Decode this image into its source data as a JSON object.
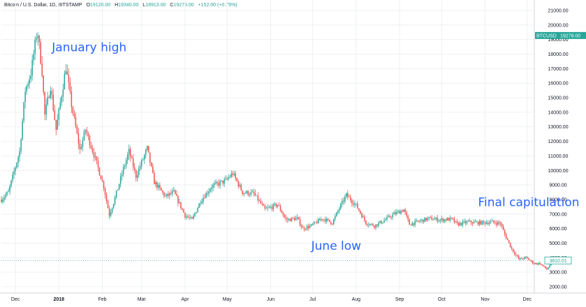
{
  "header": {
    "symbol": "Bitcoin / U.S. Dollar, 1D, BITSTAMP",
    "open_label": "O",
    "open": "19128.00",
    "high_label": "H",
    "high": "19340.00",
    "low_label": "L",
    "low": "18913.00",
    "close_label": "C",
    "close": "19278.00",
    "change": "+152.00 (+0.79%)"
  },
  "price_tag": {
    "ticker": "BTCUSD",
    "value": "19278.00",
    "color": "#26a69a"
  },
  "last_tag": {
    "value": "3810.01"
  },
  "annotations": [
    {
      "text": "January high",
      "date": "2017-12-27",
      "price": 18200
    },
    {
      "text": "June low",
      "date": "2018-06-30",
      "price": 4550
    },
    {
      "text": "Final capitulation",
      "date": "2018-10-27",
      "price": 7550
    }
  ],
  "chart_data": {
    "type": "candlestick",
    "title": "",
    "xlabel": "",
    "ylabel": "",
    "x_range": [
      "2017-11-21",
      "2018-12-31"
    ],
    "ylim": [
      1800,
      21100
    ],
    "y_ticks": [
      2000,
      3000,
      4000,
      5000,
      6000,
      7000,
      8000,
      9000,
      10000,
      11000,
      12000,
      13000,
      14000,
      15000,
      16000,
      17000,
      18000,
      19000,
      20000,
      21000
    ],
    "y_tick_labels": [
      "2000.00",
      "3000.00",
      "4000.00",
      "5000.00",
      "6000.00",
      "7000.00",
      "8000.00",
      "9000.00",
      "10000.00",
      "11000.00",
      "12000.00",
      "13000.00",
      "14000.00",
      "15000.00",
      "16000.00",
      "17000.00",
      "18000.00",
      "19000.00",
      "20000.00",
      "21000.00"
    ],
    "x_ticks": [
      {
        "date": "2017-12-01",
        "label": "Dec"
      },
      {
        "date": "2018-01-01",
        "label": "2018"
      },
      {
        "date": "2018-02-01",
        "label": "Feb"
      },
      {
        "date": "2018-03-01",
        "label": "Mar"
      },
      {
        "date": "2018-04-01",
        "label": "Apr"
      },
      {
        "date": "2018-05-01",
        "label": "May"
      },
      {
        "date": "2018-06-01",
        "label": "Jun"
      },
      {
        "date": "2018-07-01",
        "label": "Jul"
      },
      {
        "date": "2018-08-01",
        "label": "Aug"
      },
      {
        "date": "2018-09-01",
        "label": "Sep"
      },
      {
        "date": "2018-10-01",
        "label": "Oct"
      },
      {
        "date": "2018-11-01",
        "label": "Nov"
      },
      {
        "date": "2018-12-01",
        "label": "Dec"
      }
    ],
    "up_color": "#26a69a",
    "down_color": "#ef5350",
    "grid": true,
    "close_path": [
      [
        "2017-11-21",
        8000
      ],
      [
        "2017-11-26",
        8500
      ],
      [
        "2017-11-30",
        9900
      ],
      [
        "2017-12-04",
        11300
      ],
      [
        "2017-12-08",
        15500
      ],
      [
        "2017-12-12",
        16700
      ],
      [
        "2017-12-16",
        19300
      ],
      [
        "2017-12-17",
        19400
      ],
      [
        "2017-12-20",
        16800
      ],
      [
        "2017-12-22",
        13800
      ],
      [
        "2017-12-26",
        15800
      ],
      [
        "2017-12-30",
        12800
      ],
      [
        "2018-01-06",
        17100
      ],
      [
        "2018-01-10",
        14500
      ],
      [
        "2018-01-16",
        11400
      ],
      [
        "2018-01-20",
        12800
      ],
      [
        "2018-01-26",
        11100
      ],
      [
        "2018-02-02",
        8900
      ],
      [
        "2018-02-06",
        6950
      ],
      [
        "2018-02-10",
        8100
      ],
      [
        "2018-02-16",
        10100
      ],
      [
        "2018-02-20",
        11300
      ],
      [
        "2018-02-25",
        9600
      ],
      [
        "2018-03-05",
        11500
      ],
      [
        "2018-03-10",
        9200
      ],
      [
        "2018-03-18",
        8200
      ],
      [
        "2018-03-24",
        8500
      ],
      [
        "2018-04-01",
        6900
      ],
      [
        "2018-04-06",
        6600
      ],
      [
        "2018-04-12",
        7900
      ],
      [
        "2018-04-20",
        8900
      ],
      [
        "2018-04-30",
        9300
      ],
      [
        "2018-05-05",
        9800
      ],
      [
        "2018-05-12",
        8500
      ],
      [
        "2018-05-20",
        8400
      ],
      [
        "2018-05-28",
        7300
      ],
      [
        "2018-06-06",
        7650
      ],
      [
        "2018-06-12",
        6600
      ],
      [
        "2018-06-20",
        6700
      ],
      [
        "2018-06-24",
        6000
      ],
      [
        "2018-06-30",
        6200
      ],
      [
        "2018-07-08",
        6700
      ],
      [
        "2018-07-15",
        6400
      ],
      [
        "2018-07-20",
        7400
      ],
      [
        "2018-07-25",
        8300
      ],
      [
        "2018-08-01",
        7600
      ],
      [
        "2018-08-08",
        6400
      ],
      [
        "2018-08-14",
        6200
      ],
      [
        "2018-08-20",
        6500
      ],
      [
        "2018-08-28",
        7000
      ],
      [
        "2018-09-04",
        7300
      ],
      [
        "2018-09-08",
        6300
      ],
      [
        "2018-09-15",
        6500
      ],
      [
        "2018-09-22",
        6700
      ],
      [
        "2018-09-30",
        6600
      ],
      [
        "2018-10-08",
        6650
      ],
      [
        "2018-10-12",
        6300
      ],
      [
        "2018-10-20",
        6450
      ],
      [
        "2018-10-28",
        6400
      ],
      [
        "2018-11-06",
        6450
      ],
      [
        "2018-11-12",
        6350
      ],
      [
        "2018-11-15",
        5600
      ],
      [
        "2018-11-20",
        4600
      ],
      [
        "2018-11-25",
        3900
      ],
      [
        "2018-11-30",
        4000
      ],
      [
        "2018-12-06",
        3600
      ],
      [
        "2018-12-10",
        3600
      ],
      [
        "2018-12-15",
        3200
      ],
      [
        "2018-12-20",
        3900
      ],
      [
        "2018-12-25",
        3800
      ],
      [
        "2018-12-31",
        3810
      ]
    ]
  }
}
